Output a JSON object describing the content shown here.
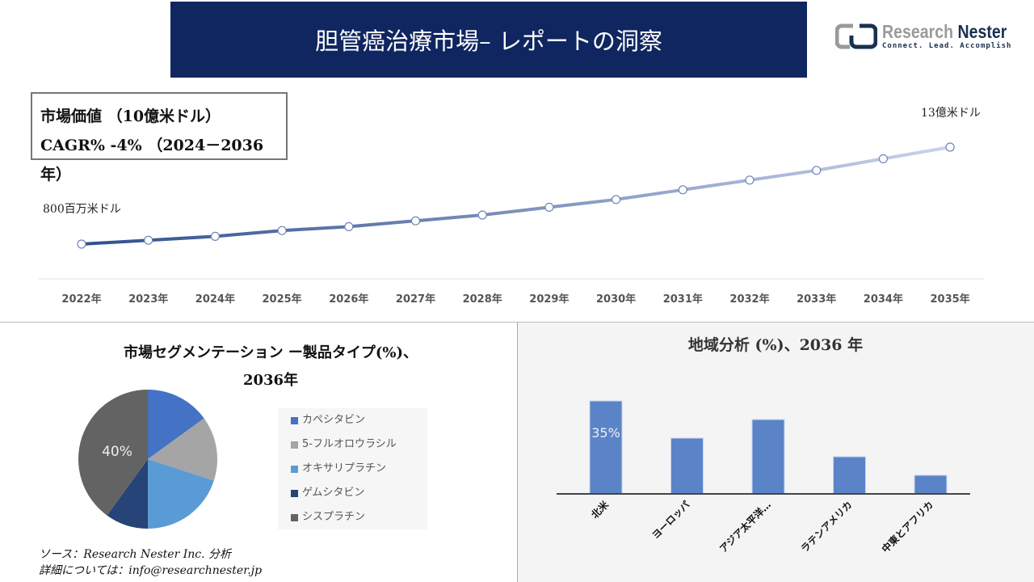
{
  "header": {
    "title": "胆管癌治療市場– レポートの洞察"
  },
  "logo": {
    "name_part1": "Research",
    "name_part2": "Nester",
    "tagline": "Connect. Lead. Accomplish"
  },
  "infobox": {
    "line1": "市場価値 （10億米ドル）",
    "line2": "CAGR% -4% （2024－2036年）"
  },
  "source": {
    "line1": "ソース：Research Nester Inc. 分析",
    "line2": "詳細については：info@researchnester.jp"
  },
  "colors": {
    "banner": "#0f2660",
    "line_start": "#2f4f8f",
    "line_end": "#c9d3ea",
    "bar": "#5b84c8"
  },
  "chart_data": [
    {
      "type": "line",
      "categories": [
        "2022年",
        "2023年",
        "2024年",
        "2025年",
        "2026年",
        "2027年",
        "2028年",
        "2029年",
        "2030年",
        "2031年",
        "2032年",
        "2033年",
        "2034年",
        "2035年"
      ],
      "values": [
        0.8,
        0.82,
        0.84,
        0.87,
        0.89,
        0.92,
        0.95,
        0.99,
        1.03,
        1.08,
        1.13,
        1.18,
        1.24,
        1.3
      ],
      "annotations": {
        "first": "800百万米ドル",
        "last": "13億米ドル"
      },
      "grid": false
    },
    {
      "type": "pie",
      "title": "市場セグメンテーション ー製品タイプ(%)、",
      "title_line2": "2036年",
      "slices": [
        {
          "label": "カペシタビン",
          "value": 15,
          "color": "#4472c4"
        },
        {
          "label": "5-フルオロウラシル",
          "value": 15,
          "color": "#a5a5a5"
        },
        {
          "label": "オキサリプラチン",
          "value": 20,
          "color": "#5b9bd5"
        },
        {
          "label": "ゲムシタビン",
          "value": 10,
          "color": "#264478"
        },
        {
          "label": "シスプラチン",
          "value": 40,
          "color": "#636363"
        }
      ],
      "data_label": "40%",
      "legend": "right"
    },
    {
      "type": "bar",
      "title": "地域分析 (%)、2036 年",
      "categories": [
        "北米",
        "ヨーロッパ",
        "アジア太平洋…",
        "ラテンアメリカ",
        "中東とアフリカ"
      ],
      "values": [
        35,
        21,
        28,
        14,
        7
      ],
      "data_label": "35%"
    }
  ]
}
